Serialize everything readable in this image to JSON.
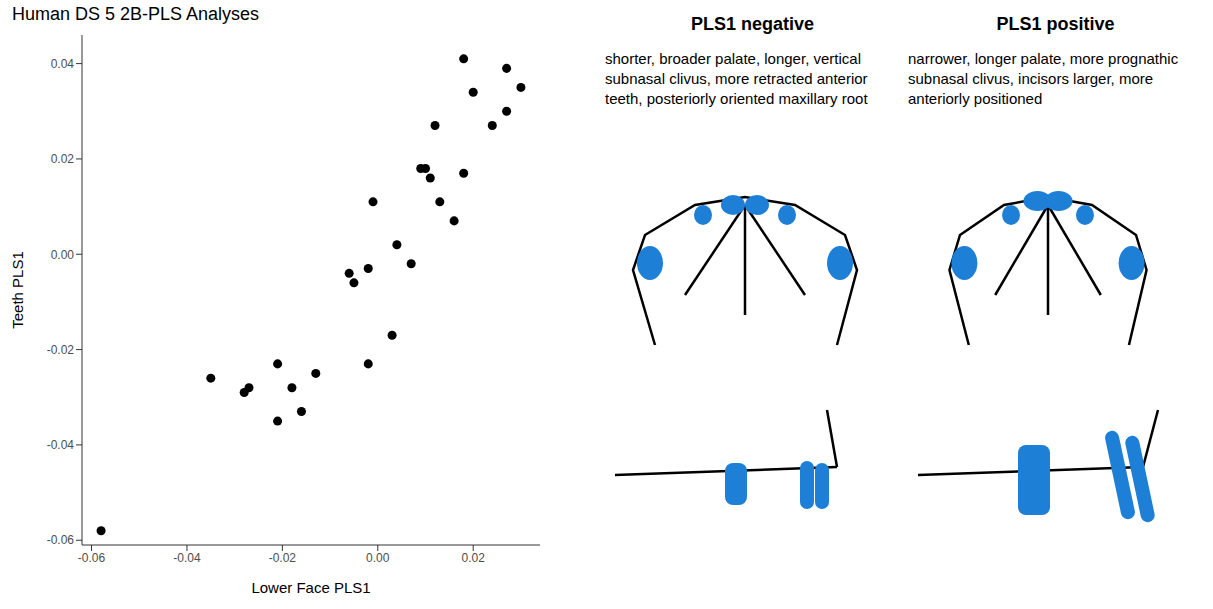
{
  "chart_data": {
    "type": "scatter",
    "title": "Human DS 5 2B-PLS Analyses",
    "x_label": "Lower Face PLS1",
    "y_label": "Teeth PLS1",
    "color": "#000000",
    "grid": false,
    "x": [
      -0.058,
      -0.035,
      -0.028,
      -0.027,
      -0.021,
      -0.021,
      -0.018,
      -0.016,
      -0.013,
      -0.006,
      -0.005,
      -0.002,
      -0.002,
      -0.001,
      0.003,
      0.004,
      0.007,
      0.009,
      0.01,
      0.011,
      0.012,
      0.013,
      0.016,
      0.018,
      0.018,
      0.02,
      0.024,
      0.027,
      0.027,
      0.03
    ],
    "values": [
      -0.058,
      -0.026,
      -0.029,
      -0.028,
      -0.023,
      -0.035,
      -0.028,
      -0.033,
      -0.025,
      -0.004,
      -0.006,
      -0.023,
      -0.003,
      0.011,
      -0.017,
      0.002,
      -0.002,
      0.018,
      0.018,
      0.016,
      0.027,
      0.011,
      0.007,
      0.017,
      0.041,
      0.034,
      0.027,
      0.03,
      0.039,
      0.035
    ],
    "xlim": [
      -0.062,
      0.034
    ],
    "xticks": [
      -0.06,
      -0.04,
      -0.02,
      {
        "value": 0,
        "label": "0.00"
      },
      0.02
    ],
    "ylim": [
      -0.061,
      0.046
    ],
    "yticks": [
      -0.06,
      -0.04,
      -0.02,
      {
        "value": 0,
        "label": "0.00"
      },
      0.02,
      0.04
    ]
  },
  "panels": [
    {
      "title": "PLS1 negative",
      "description": "shorter, broader palate, longer, vertical subnasal clivus, more retracted anterior teeth, posteriorly oriented maxillary root"
    },
    {
      "title": "PLS1 positive",
      "description": "narrower, longer palate, more prognathic subnasal clivus, incisors larger, more anteriorly positioned"
    }
  ]
}
